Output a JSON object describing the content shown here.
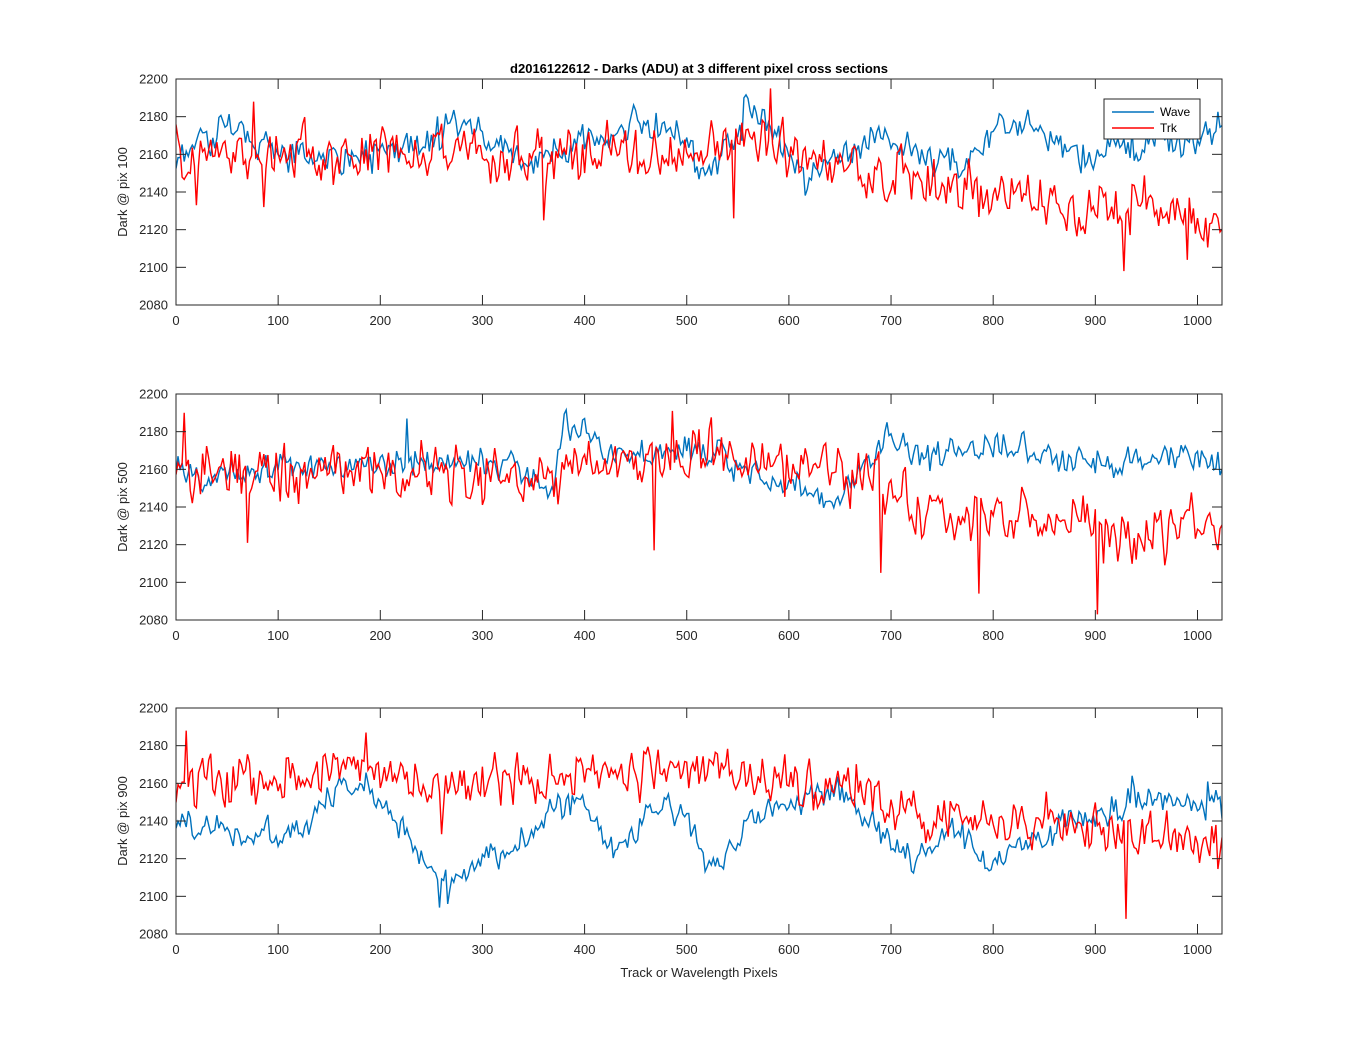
{
  "figure": {
    "title": "d2016122612 - Darks (ADU) at 3 different pixel cross sections",
    "xlabel": "Track or Wavelength Pixels"
  },
  "colors": {
    "wave": "#0072BD",
    "trk": "#FF0000",
    "axis": "#262626"
  },
  "chart_data": [
    {
      "type": "line",
      "ylabel": "Dark @ pix 100",
      "xlim": [
        0,
        1024
      ],
      "ylim": [
        2080,
        2200
      ],
      "xticks": [
        0,
        100,
        200,
        300,
        400,
        500,
        600,
        700,
        800,
        900,
        1000
      ],
      "yticks": [
        2080,
        2100,
        2120,
        2140,
        2160,
        2180,
        2200
      ],
      "legend": {
        "location": "top-right",
        "entries": [
          "Wave",
          "Trk"
        ]
      },
      "grid": false,
      "series": [
        {
          "name": "Wave",
          "color": "#0072BD",
          "noise": 7,
          "trend": [
            [
              0,
              2158
            ],
            [
              40,
              2170
            ],
            [
              60,
              2176
            ],
            [
              80,
              2168
            ],
            [
              100,
              2162
            ],
            [
              150,
              2158
            ],
            [
              200,
              2160
            ],
            [
              250,
              2165
            ],
            [
              270,
              2172
            ],
            [
              290,
              2178
            ],
            [
              310,
              2166
            ],
            [
              340,
              2155
            ],
            [
              380,
              2162
            ],
            [
              420,
              2168
            ],
            [
              450,
              2175
            ],
            [
              480,
              2176
            ],
            [
              500,
              2162
            ],
            [
              520,
              2150
            ],
            [
              540,
              2165
            ],
            [
              560,
              2183
            ],
            [
              580,
              2176
            ],
            [
              600,
              2160
            ],
            [
              620,
              2145
            ],
            [
              660,
              2165
            ],
            [
              680,
              2172
            ],
            [
              700,
              2165
            ],
            [
              740,
              2158
            ],
            [
              770,
              2150
            ],
            [
              790,
              2170
            ],
            [
              810,
              2178
            ],
            [
              830,
              2172
            ],
            [
              860,
              2168
            ],
            [
              890,
              2155
            ],
            [
              910,
              2162
            ],
            [
              950,
              2165
            ],
            [
              1000,
              2168
            ],
            [
              1024,
              2172
            ]
          ],
          "spikes": [
            [
              555,
              2190
            ],
            [
              565,
              2186
            ],
            [
              470,
              2182
            ]
          ]
        },
        {
          "name": "Trk",
          "color": "#FF0000",
          "noise": 11,
          "trend": [
            [
              0,
              2160
            ],
            [
              100,
              2160
            ],
            [
              200,
              2160
            ],
            [
              300,
              2158
            ],
            [
              400,
              2158
            ],
            [
              500,
              2160
            ],
            [
              560,
              2168
            ],
            [
              600,
              2158
            ],
            [
              700,
              2150
            ],
            [
              750,
              2145
            ],
            [
              800,
              2138
            ],
            [
              900,
              2133
            ],
            [
              1000,
              2130
            ],
            [
              1024,
              2130
            ]
          ],
          "spikes": [
            [
              75,
              2188
            ],
            [
              582,
              2195
            ],
            [
              928,
              2098
            ],
            [
              990,
              2104
            ],
            [
              545,
              2126
            ],
            [
              360,
              2125
            ],
            [
              85,
              2132
            ],
            [
              20,
              2133
            ]
          ]
        }
      ]
    },
    {
      "type": "line",
      "ylabel": "Dark @ pix 500",
      "xlim": [
        0,
        1024
      ],
      "ylim": [
        2080,
        2200
      ],
      "xticks": [
        0,
        100,
        200,
        300,
        400,
        500,
        600,
        700,
        800,
        900,
        1000
      ],
      "yticks": [
        2080,
        2100,
        2120,
        2140,
        2160,
        2180,
        2200
      ],
      "grid": false,
      "series": [
        {
          "name": "Wave",
          "color": "#0072BD",
          "noise": 6,
          "trend": [
            [
              0,
              2158
            ],
            [
              50,
              2156
            ],
            [
              100,
              2162
            ],
            [
              200,
              2162
            ],
            [
              300,
              2165
            ],
            [
              350,
              2160
            ],
            [
              370,
              2148
            ],
            [
              380,
              2182
            ],
            [
              400,
              2182
            ],
            [
              420,
              2170
            ],
            [
              470,
              2165
            ],
            [
              500,
              2173
            ],
            [
              540,
              2165
            ],
            [
              580,
              2155
            ],
            [
              620,
              2150
            ],
            [
              640,
              2140
            ],
            [
              670,
              2160
            ],
            [
              690,
              2178
            ],
            [
              710,
              2170
            ],
            [
              730,
              2165
            ],
            [
              780,
              2170
            ],
            [
              850,
              2168
            ],
            [
              900,
              2165
            ],
            [
              1000,
              2167
            ],
            [
              1024,
              2165
            ]
          ],
          "spikes": [
            [
              695,
              2185
            ],
            [
              225,
              2187
            ],
            [
              830,
              2180
            ]
          ]
        },
        {
          "name": "Trk",
          "color": "#FF0000",
          "noise": 11,
          "trend": [
            [
              0,
              2162
            ],
            [
              100,
              2160
            ],
            [
              200,
              2158
            ],
            [
              300,
              2156
            ],
            [
              400,
              2160
            ],
            [
              480,
              2165
            ],
            [
              520,
              2168
            ],
            [
              560,
              2160
            ],
            [
              650,
              2160
            ],
            [
              690,
              2150
            ],
            [
              720,
              2138
            ],
            [
              800,
              2135
            ],
            [
              900,
              2130
            ],
            [
              1000,
              2130
            ],
            [
              1024,
              2130
            ]
          ],
          "spikes": [
            [
              8,
              2190
            ],
            [
              70,
              2121
            ],
            [
              468,
              2117
            ],
            [
              485,
              2191
            ],
            [
              690,
              2105
            ],
            [
              785,
              2094
            ],
            [
              902,
              2083
            ],
            [
              908,
              2110
            ]
          ]
        }
      ]
    },
    {
      "type": "line",
      "ylabel": "Dark @ pix 900",
      "xlim": [
        0,
        1024
      ],
      "ylim": [
        2080,
        2200
      ],
      "xticks": [
        0,
        100,
        200,
        300,
        400,
        500,
        600,
        700,
        800,
        900,
        1000
      ],
      "yticks": [
        2080,
        2100,
        2120,
        2140,
        2160,
        2180,
        2200
      ],
      "grid": false,
      "series": [
        {
          "name": "Wave",
          "color": "#0072BD",
          "noise": 6,
          "trend": [
            [
              0,
              2140
            ],
            [
              50,
              2135
            ],
            [
              100,
              2130
            ],
            [
              130,
              2138
            ],
            [
              160,
              2158
            ],
            [
              190,
              2158
            ],
            [
              220,
              2140
            ],
            [
              240,
              2120
            ],
            [
              260,
              2104
            ],
            [
              280,
              2115
            ],
            [
              300,
              2125
            ],
            [
              330,
              2122
            ],
            [
              360,
              2140
            ],
            [
              380,
              2150
            ],
            [
              400,
              2150
            ],
            [
              420,
              2125
            ],
            [
              440,
              2128
            ],
            [
              460,
              2140
            ],
            [
              480,
              2150
            ],
            [
              500,
              2145
            ],
            [
              520,
              2115
            ],
            [
              540,
              2125
            ],
            [
              560,
              2140
            ],
            [
              600,
              2150
            ],
            [
              650,
              2155
            ],
            [
              700,
              2130
            ],
            [
              720,
              2118
            ],
            [
              760,
              2132
            ],
            [
              800,
              2118
            ],
            [
              840,
              2130
            ],
            [
              880,
              2140
            ],
            [
              920,
              2148
            ],
            [
              960,
              2152
            ],
            [
              1000,
              2152
            ],
            [
              1024,
              2145
            ]
          ],
          "spikes": [
            [
              258,
              2094
            ],
            [
              265,
              2096
            ],
            [
              935,
              2164
            ],
            [
              1010,
              2161
            ]
          ]
        },
        {
          "name": "Trk",
          "color": "#FF0000",
          "noise": 10,
          "trend": [
            [
              0,
              2160
            ],
            [
              100,
              2162
            ],
            [
              180,
              2168
            ],
            [
              250,
              2158
            ],
            [
              300,
              2160
            ],
            [
              400,
              2165
            ],
            [
              500,
              2168
            ],
            [
              600,
              2158
            ],
            [
              700,
              2152
            ],
            [
              800,
              2142
            ],
            [
              900,
              2138
            ],
            [
              1000,
              2125
            ],
            [
              1024,
              2125
            ]
          ],
          "spikes": [
            [
              10,
              2188
            ],
            [
              185,
              2187
            ],
            [
              930,
              2088
            ],
            [
              260,
              2133
            ]
          ]
        }
      ]
    }
  ]
}
